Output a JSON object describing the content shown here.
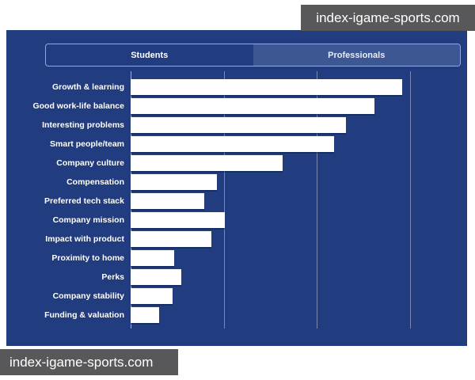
{
  "watermarks": {
    "top": "index-igame-sports.com",
    "bottom": "index-igame-sports.com"
  },
  "tabs": {
    "items": [
      {
        "label": "Students",
        "selected": true
      },
      {
        "label": "Professionals",
        "selected": false
      }
    ]
  },
  "colors": {
    "panel_bg": "#213c7f",
    "inactive_tab_bg": "#3d5694",
    "bar_fill": "#ffffff",
    "gridline": "rgba(255,255,255,0.40)",
    "watermark_bg": "#58585a",
    "label_text": "#ffffff",
    "page_bg": "#ffffff"
  },
  "chart_data": {
    "type": "bar",
    "orientation": "horizontal",
    "title": "",
    "xlabel": "",
    "ylabel": "",
    "legend": "none",
    "categories": [
      "Growth & learning",
      "Good work-life balance",
      "Interesting problems",
      "Smart people/team",
      "Company culture",
      "Compensation",
      "Preferred tech stack",
      "Company mission",
      "Impact with product",
      "Proximity to home",
      "Perks",
      "Company stability",
      "Funding & valuation"
    ],
    "values": [
      2.91,
      2.62,
      2.31,
      2.18,
      1.63,
      0.93,
      0.79,
      1.01,
      0.87,
      0.47,
      0.54,
      0.45,
      0.31
    ],
    "xlim": [
      0,
      3.44
    ],
    "gridline_positions": [
      1,
      2,
      3
    ],
    "axis_tick_labels": "none (axis unlabeled; values in gridline-spacing units)",
    "bar_color": "#ffffff",
    "grid": "vertical lines only"
  }
}
